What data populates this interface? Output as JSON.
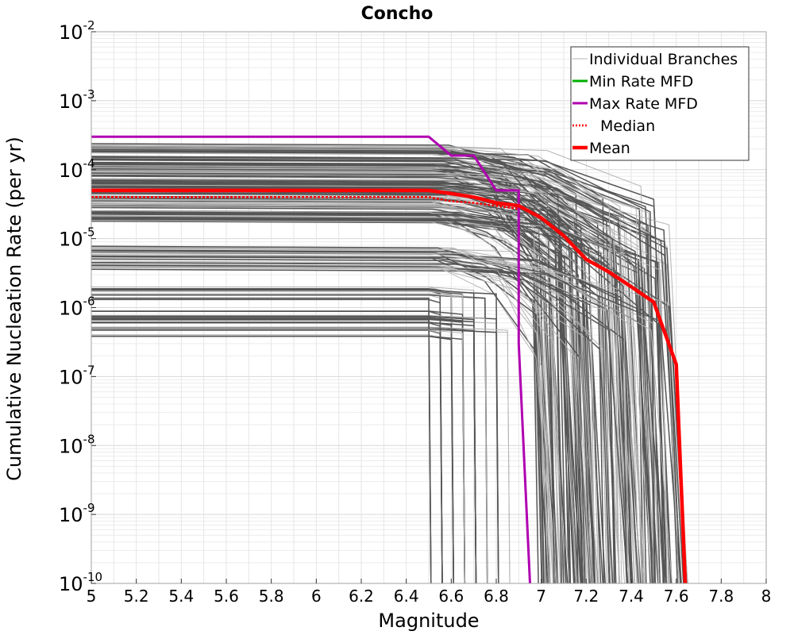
{
  "chart_data": {
    "type": "line",
    "title": "Concho",
    "xlabel": "Magnitude",
    "ylabel": "Cumulative Nucleation Rate (per yr)",
    "xlim": [
      5,
      8
    ],
    "ylim": [
      1e-10,
      0.01
    ],
    "yscale": "log",
    "grid": true,
    "legend_placement": "top-right",
    "x_ticks": [
      {
        "value": 5,
        "label": "5"
      },
      {
        "value": 5.2,
        "label": "5.2"
      },
      {
        "value": 5.4,
        "label": "5.4"
      },
      {
        "value": 5.6,
        "label": "5.6"
      },
      {
        "value": 5.8,
        "label": "5.8"
      },
      {
        "value": 6,
        "label": "6"
      },
      {
        "value": 6.2,
        "label": "6.2"
      },
      {
        "value": 6.4,
        "label": "6.4"
      },
      {
        "value": 6.6,
        "label": "6.6"
      },
      {
        "value": 6.8,
        "label": "6.8"
      },
      {
        "value": 7,
        "label": "7"
      },
      {
        "value": 7.2,
        "label": "7.2"
      },
      {
        "value": 7.4,
        "label": "7.4"
      },
      {
        "value": 7.6,
        "label": "7.6"
      },
      {
        "value": 7.8,
        "label": "7.8"
      },
      {
        "value": 8,
        "label": "8"
      }
    ],
    "y_ticks": [
      {
        "exp": -2,
        "base": "10",
        "sup": "-2"
      },
      {
        "exp": -3,
        "base": "10",
        "sup": "-3"
      },
      {
        "exp": -4,
        "base": "10",
        "sup": "-4"
      },
      {
        "exp": -5,
        "base": "10",
        "sup": "-5"
      },
      {
        "exp": -6,
        "base": "10",
        "sup": "-6"
      },
      {
        "exp": -7,
        "base": "10",
        "sup": "-7"
      },
      {
        "exp": -8,
        "base": "10",
        "sup": "-8"
      },
      {
        "exp": -9,
        "base": "10",
        "sup": "-9"
      },
      {
        "exp": -10,
        "base": "10",
        "sup": "-10"
      }
    ],
    "legend": [
      {
        "label": "Individual Branches",
        "color": "#b4b4b4",
        "style": "thin"
      },
      {
        "label": "Min Rate MFD",
        "color": "#00b000",
        "style": "solid"
      },
      {
        "label": "Max Rate MFD",
        "color": "#b000b0",
        "style": "solid"
      },
      {
        "label": "Median",
        "color": "#ff0000",
        "style": "dotted"
      },
      {
        "label": "Mean",
        "color": "#ff0000",
        "style": "thick"
      }
    ],
    "series": [
      {
        "name": "Max Rate MFD",
        "color": "#b000b0",
        "x": [
          5.0,
          6.5,
          6.6,
          6.7,
          6.8,
          6.9,
          6.9,
          6.95
        ],
        "y": [
          0.0003,
          0.0003,
          0.00016,
          0.00016,
          5e-05,
          5e-05,
          3e-07,
          1e-10
        ]
      },
      {
        "name": "Median",
        "color": "#ff0000",
        "x": [
          5.0,
          6.5,
          6.6,
          6.7,
          6.8,
          6.9
        ],
        "y": [
          4e-05,
          4e-05,
          3.5e-05,
          3.3e-05,
          3e-05,
          2.7e-05
        ]
      },
      {
        "name": "Mean",
        "color": "#ff0000",
        "x": [
          5.0,
          6.5,
          6.6,
          6.7,
          6.8,
          6.9,
          7.0,
          7.1,
          7.2,
          7.3,
          7.4,
          7.5,
          7.6,
          7.64
        ],
        "y": [
          5e-05,
          5e-05,
          4.5e-05,
          4e-05,
          3.3e-05,
          3e-05,
          2e-05,
          1.1e-05,
          5e-06,
          3.3e-06,
          2e-06,
          1.2e-06,
          1.5e-07,
          1e-10
        ]
      }
    ]
  }
}
